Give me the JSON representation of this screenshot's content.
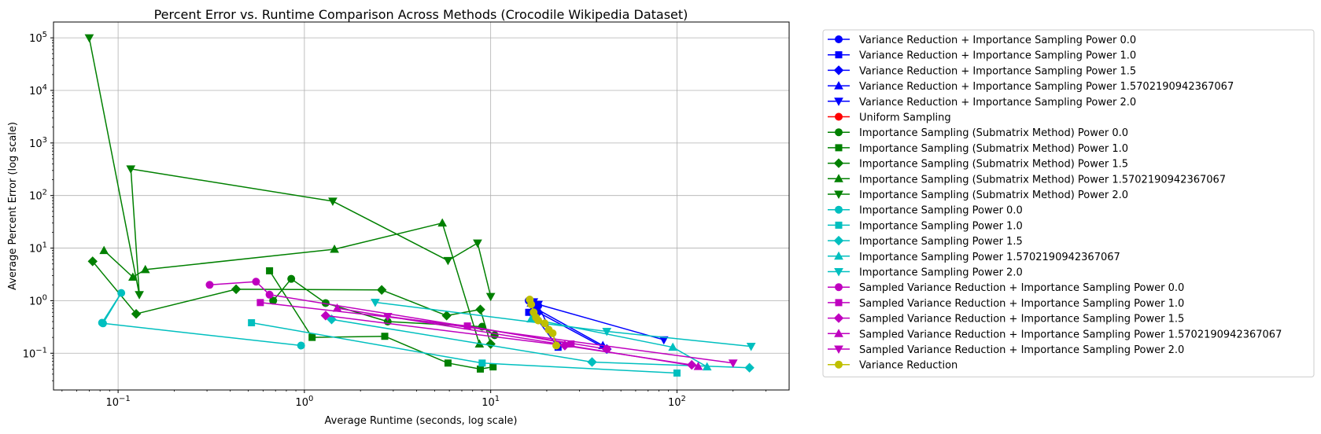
{
  "chart_data": {
    "type": "line",
    "title": "Percent Error vs. Runtime Comparison Across Methods (Crocodile Wikipedia Dataset)",
    "xlabel": "Average Runtime (seconds, log scale)",
    "ylabel": "Average Percent Error (log scale)",
    "xscale": "log",
    "yscale": "log",
    "xlim": [
      0.045,
      400
    ],
    "ylim": [
      0.02,
      200000
    ],
    "x_ticks": [
      {
        "value": 0.1,
        "base": "10",
        "exp": "−1"
      },
      {
        "value": 1,
        "base": "10",
        "exp": "0"
      },
      {
        "value": 10,
        "base": "10",
        "exp": "1"
      },
      {
        "value": 100,
        "base": "10",
        "exp": "2"
      }
    ],
    "y_ticks": [
      {
        "value": 0.1,
        "base": "10",
        "exp": "−1"
      },
      {
        "value": 1,
        "base": "10",
        "exp": "0"
      },
      {
        "value": 10,
        "base": "10",
        "exp": "1"
      },
      {
        "value": 100,
        "base": "10",
        "exp": "2"
      },
      {
        "value": 1000,
        "base": "10",
        "exp": "3"
      },
      {
        "value": 10000,
        "base": "10",
        "exp": "4"
      },
      {
        "value": 100000,
        "base": "10",
        "exp": "5"
      }
    ],
    "grid": true,
    "legend_position": "outside-right",
    "series": [
      {
        "name": "Variance Reduction + Importance Sampling Power 0.0",
        "color": "#0000ff",
        "marker": "circle",
        "x": [
          16.0,
          18.0,
          23.0
        ],
        "y": [
          1.0,
          0.8,
          0.14
        ]
      },
      {
        "name": "Variance Reduction + Importance Sampling Power 1.0",
        "color": "#0000ff",
        "marker": "square",
        "x": [
          16.0,
          17.0,
          23.0
        ],
        "y": [
          0.6,
          0.55,
          0.13
        ]
      },
      {
        "name": "Variance Reduction + Importance Sampling Power 1.5",
        "color": "#0000ff",
        "marker": "diamond",
        "x": [
          16.5,
          18.0,
          42.0
        ],
        "y": [
          0.95,
          0.6,
          0.12
        ]
      },
      {
        "name": "Variance Reduction + Importance Sampling Power 1.5702190942367067",
        "color": "#0000ff",
        "marker": "triangle-up",
        "x": [
          16.5,
          17.0,
          40.0
        ],
        "y": [
          0.9,
          0.75,
          0.14
        ]
      },
      {
        "name": "Variance Reduction + Importance Sampling Power 2.0",
        "color": "#0000ff",
        "marker": "triangle-down",
        "x": [
          17.0,
          18.0,
          85.0
        ],
        "y": [
          0.95,
          0.85,
          0.18
        ]
      },
      {
        "name": "Uniform Sampling",
        "color": "#ff0000",
        "marker": "circle",
        "x": [],
        "y": []
      },
      {
        "name": "Importance Sampling (Submatrix Method) Power 0.0",
        "color": "#008000",
        "marker": "circle",
        "x": [
          0.68,
          0.85,
          1.3,
          2.8,
          9.0,
          10.5
        ],
        "y": [
          1.0,
          2.6,
          0.9,
          0.4,
          0.32,
          0.22
        ]
      },
      {
        "name": "Importance Sampling (Submatrix Method) Power 1.0",
        "color": "#008000",
        "marker": "square",
        "x": [
          0.65,
          1.1,
          2.7,
          5.9,
          8.8,
          10.3
        ],
        "y": [
          3.7,
          0.2,
          0.21,
          0.065,
          0.05,
          0.055
        ]
      },
      {
        "name": "Importance Sampling (Submatrix Method) Power 1.5",
        "color": "#008000",
        "marker": "diamond",
        "x": [
          0.073,
          0.125,
          0.43,
          2.6,
          5.8,
          8.8,
          10.0
        ],
        "y": [
          5.6,
          0.56,
          1.65,
          1.6,
          0.52,
          0.68,
          0.15
        ]
      },
      {
        "name": "Importance Sampling (Submatrix Method) Power 1.5702190942367067",
        "color": "#008000",
        "marker": "triangle-up",
        "x": [
          0.084,
          0.12,
          0.14,
          1.45,
          5.5,
          8.7
        ],
        "y": [
          9.0,
          2.8,
          3.9,
          9.5,
          30.0,
          0.15
        ]
      },
      {
        "name": "Importance Sampling (Submatrix Method) Power 2.0",
        "color": "#008000",
        "marker": "triangle-down",
        "x": [
          0.07,
          0.13,
          0.117,
          1.42,
          5.9,
          8.5,
          10.0
        ],
        "y": [
          100000.0,
          1.3,
          320.0,
          78.0,
          5.8,
          12.5,
          1.2
        ]
      },
      {
        "name": "Importance Sampling Power 0.0",
        "color": "#00bfbf",
        "marker": "circle",
        "x": [
          0.082,
          0.104,
          0.083,
          0.96
        ],
        "y": [
          0.38,
          1.4,
          0.37,
          0.14
        ]
      },
      {
        "name": "Importance Sampling Power 1.0",
        "color": "#00bfbf",
        "marker": "square",
        "x": [
          0.52,
          9.0,
          100.0
        ],
        "y": [
          0.38,
          0.065,
          0.042
        ]
      },
      {
        "name": "Importance Sampling Power 1.5",
        "color": "#00bfbf",
        "marker": "diamond",
        "x": [
          1.4,
          35.0,
          245.0
        ],
        "y": [
          0.44,
          0.068,
          0.053
        ]
      },
      {
        "name": "Importance Sampling Power 1.5702190942367067",
        "color": "#00bfbf",
        "marker": "triangle-up",
        "x": [
          16.5,
          95.0,
          145.0
        ],
        "y": [
          0.45,
          0.13,
          0.055
        ]
      },
      {
        "name": "Importance Sampling Power 2.0",
        "color": "#00bfbf",
        "marker": "triangle-down",
        "x": [
          2.4,
          42.0,
          250.0
        ],
        "y": [
          0.93,
          0.26,
          0.135
        ]
      },
      {
        "name": "Sampled Variance Reduction + Importance Sampling Power 0.0",
        "color": "#bf00bf",
        "marker": "circle",
        "x": [
          0.31,
          0.55,
          0.65,
          42.0
        ],
        "y": [
          2.0,
          2.3,
          1.3,
          0.12
        ]
      },
      {
        "name": "Sampled Variance Reduction + Importance Sampling Power 1.0",
        "color": "#bf00bf",
        "marker": "square",
        "x": [
          0.58,
          7.5,
          27.0
        ],
        "y": [
          0.92,
          0.33,
          0.15
        ]
      },
      {
        "name": "Sampled Variance Reduction + Importance Sampling Power 1.5",
        "color": "#bf00bf",
        "marker": "diamond",
        "x": [
          1.3,
          25.0,
          120.0
        ],
        "y": [
          0.52,
          0.14,
          0.06
        ]
      },
      {
        "name": "Sampled Variance Reduction + Importance Sampling Power 1.5702190942367067",
        "color": "#bf00bf",
        "marker": "triangle-up",
        "x": [
          1.5,
          130.0
        ],
        "y": [
          0.72,
          0.056
        ]
      },
      {
        "name": "Sampled Variance Reduction + Importance Sampling Power 2.0",
        "color": "#bf00bf",
        "marker": "triangle-down",
        "x": [
          2.8,
          200.0
        ],
        "y": [
          0.5,
          0.065
        ]
      },
      {
        "name": "Variance Reduction",
        "color": "#bfbf00",
        "marker": "circle",
        "x": [
          16.2,
          16.5,
          17.0,
          17.5,
          18.0,
          19.5,
          20.5,
          21.5,
          22.5
        ],
        "y": [
          1.05,
          0.85,
          0.6,
          0.48,
          0.42,
          0.37,
          0.28,
          0.24,
          0.14
        ]
      }
    ]
  }
}
